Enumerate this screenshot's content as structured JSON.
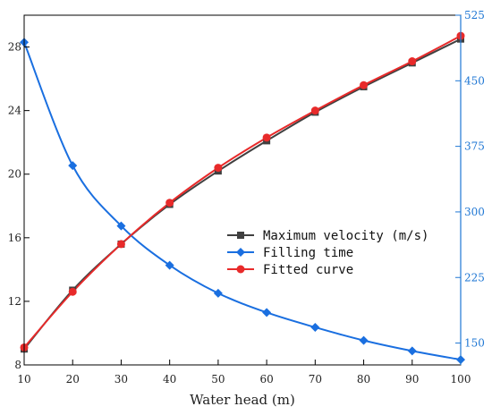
{
  "colors": {
    "left_axis": "#000000",
    "right_axis": "#1f77d4",
    "max_velocity": "#404040",
    "filling_time": "#1a6fe0",
    "fitted_curve": "#e82a2a"
  },
  "chart_data": {
    "type": "line",
    "xlabel": "Water head (m)",
    "x": [
      10,
      20,
      30,
      40,
      50,
      60,
      70,
      80,
      90,
      100
    ],
    "xlim": [
      10,
      100
    ],
    "x_ticks": [
      "10",
      "20",
      "30",
      "40",
      "50",
      "60",
      "70",
      "80",
      "90",
      "100"
    ],
    "y_left": {
      "ylim": [
        8,
        30
      ],
      "ticks": [
        "8",
        "12",
        "16",
        "20",
        "24",
        "28"
      ]
    },
    "y_right": {
      "ylim": [
        125,
        525
      ],
      "ticks": [
        "150",
        "225",
        "300",
        "375",
        "450",
        "525"
      ]
    },
    "legend_position": "center-right",
    "series": [
      {
        "name": "Maximum velocity (m/s)",
        "axis": "left",
        "marker": "square",
        "color_key": "max_velocity",
        "values": [
          9.0,
          12.7,
          15.6,
          18.1,
          20.2,
          22.1,
          23.9,
          25.5,
          27.0,
          28.5
        ]
      },
      {
        "name": "Filling time",
        "axis": "right",
        "marker": "diamond",
        "color_key": "filling_time",
        "values": [
          494,
          353,
          284,
          239,
          207,
          185,
          168,
          153,
          141,
          131
        ]
      },
      {
        "name": "Fitted curve",
        "axis": "left",
        "marker": "circle",
        "color_key": "fitted_curve",
        "values": [
          9.1,
          12.6,
          15.6,
          18.2,
          20.4,
          22.3,
          24.0,
          25.6,
          27.1,
          28.7
        ]
      }
    ]
  }
}
